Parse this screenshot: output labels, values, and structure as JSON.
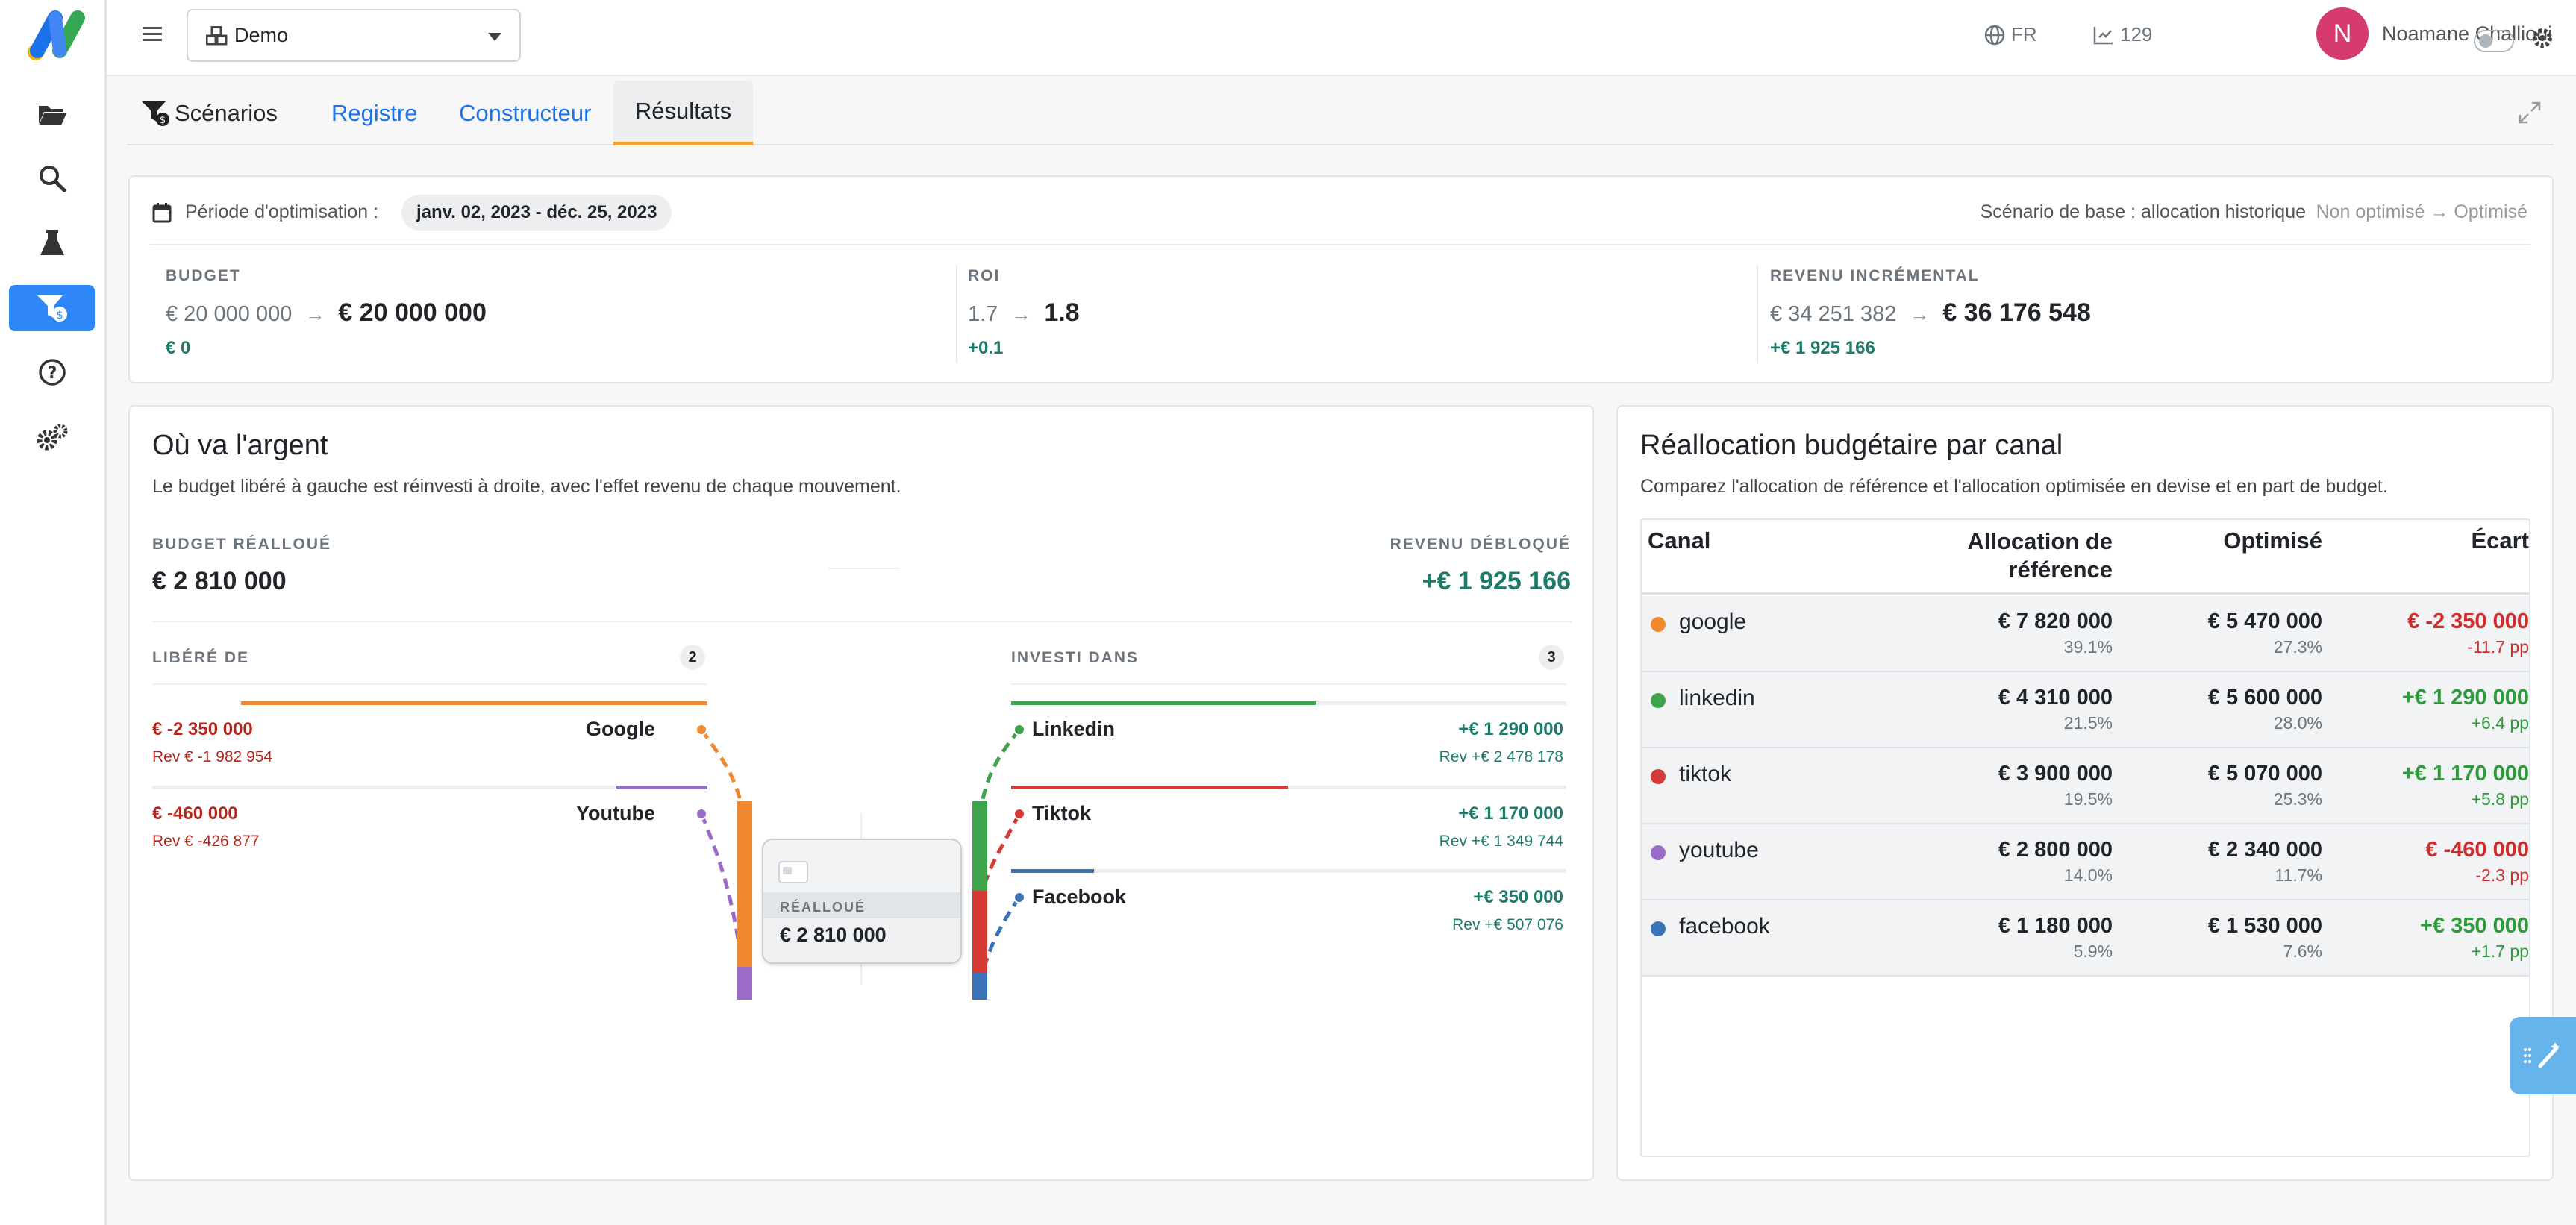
{
  "topbar": {
    "project": "Demo",
    "language": "FR",
    "count": "129",
    "user_initial": "N",
    "user_name": "Noamane Challioui"
  },
  "sidebar": {
    "items": [
      "folder-icon",
      "search-icon",
      "flask-icon",
      "filter-dollar-icon",
      "help-icon",
      "settings-icon"
    ]
  },
  "tabs": {
    "scenarios": "Scénarios",
    "registre": "Registre",
    "constructeur": "Constructeur",
    "resultats": "Résultats"
  },
  "summary": {
    "period_label": "Période d'optimisation :",
    "period_value": "janv. 02, 2023 - déc. 25, 2023",
    "base_scenario": "Scénario de base : allocation historique",
    "mode": "Non optimisé → Optimisé",
    "kpis": [
      {
        "label": "BUDGET",
        "before": "€ 20 000 000",
        "after": "€ 20 000 000",
        "delta": "€ 0"
      },
      {
        "label": "ROI",
        "before": "1.7",
        "after": "1.8",
        "delta": "+0.1"
      },
      {
        "label": "REVENU INCRÉMENTAL",
        "before": "€ 34 251 382",
        "after": "€ 36 176 548",
        "delta": "+€ 1 925 166"
      }
    ]
  },
  "flow": {
    "title": "Où va l'argent",
    "subtitle": "Le budget libéré à gauche est réinvesti à droite, avec l'effet revenu de chaque mouvement.",
    "reallocated_label": "BUDGET RÉALLOUÉ",
    "reallocated_value": "€ 2 810 000",
    "unlocked_label": "REVENU DÉBLOQUÉ",
    "unlocked_value": "+€ 1 925 166",
    "from_label": "LIBÉRÉ DE",
    "from_count": "2",
    "to_label": "INVESTI DANS",
    "to_count": "3",
    "from": [
      {
        "name": "Google",
        "amount": "€ -2 350 000",
        "rev": "Rev € -1 982 954",
        "color": "#f0882f",
        "share": 1.0
      },
      {
        "name": "Youtube",
        "amount": "€ -460 000",
        "rev": "Rev € -426 877",
        "color": "#9b6bc8",
        "share": 0.196
      }
    ],
    "to": [
      {
        "name": "Linkedin",
        "amount": "+€ 1 290 000",
        "rev": "Rev +€ 2 478 178",
        "color": "#3fa34d",
        "share": 0.549
      },
      {
        "name": "Tiktok",
        "amount": "+€ 1 170 000",
        "rev": "Rev +€ 1 349 744",
        "color": "#d63a34",
        "share": 0.498
      },
      {
        "name": "Facebook",
        "amount": "+€ 350 000",
        "rev": "Rev +€ 507 076",
        "color": "#3b73b8",
        "share": 0.149
      }
    ],
    "center_label": "RÉALLOUÉ",
    "center_value": "€ 2 810 000"
  },
  "realloc": {
    "title": "Réallocation budgétaire par canal",
    "subtitle": "Comparez l'allocation de référence et l'allocation optimisée en devise et en part de budget.",
    "headers": {
      "canal": "Canal",
      "ref_line1": "Allocation de",
      "ref_line2": "référence",
      "opt": "Optimisé",
      "diff": "Écart"
    },
    "rows": [
      {
        "canal": "google",
        "color": "#f0882f",
        "ref": "€ 7 820 000",
        "ref_pct": "39.1%",
        "opt": "€ 5 470 000",
        "opt_pct": "27.3%",
        "diff": "€ -2 350 000",
        "diff_pp": "-11.7 pp",
        "diff_color": "#d02c2c"
      },
      {
        "canal": "linkedin",
        "color": "#3fa34d",
        "ref": "€ 4 310 000",
        "ref_pct": "21.5%",
        "opt": "€ 5 600 000",
        "opt_pct": "28.0%",
        "diff": "+€ 1 290 000",
        "diff_pp": "+6.4 pp",
        "diff_color": "#2e9b3a"
      },
      {
        "canal": "tiktok",
        "color": "#d63a34",
        "ref": "€ 3 900 000",
        "ref_pct": "19.5%",
        "opt": "€ 5 070 000",
        "opt_pct": "25.3%",
        "diff": "+€ 1 170 000",
        "diff_pp": "+5.8 pp",
        "diff_color": "#2e9b3a"
      },
      {
        "canal": "youtube",
        "color": "#9b6bc8",
        "ref": "€ 2 800 000",
        "ref_pct": "14.0%",
        "opt": "€ 2 340 000",
        "opt_pct": "11.7%",
        "diff": "€ -460 000",
        "diff_pp": "-2.3 pp",
        "diff_color": "#d02c2c"
      },
      {
        "canal": "facebook",
        "color": "#3b73b8",
        "ref": "€ 1 180 000",
        "ref_pct": "5.9%",
        "opt": "€ 1 530 000",
        "opt_pct": "7.6%",
        "diff": "+€ 350 000",
        "diff_pp": "+1.7 pp",
        "diff_color": "#2e9b3a"
      }
    ]
  }
}
